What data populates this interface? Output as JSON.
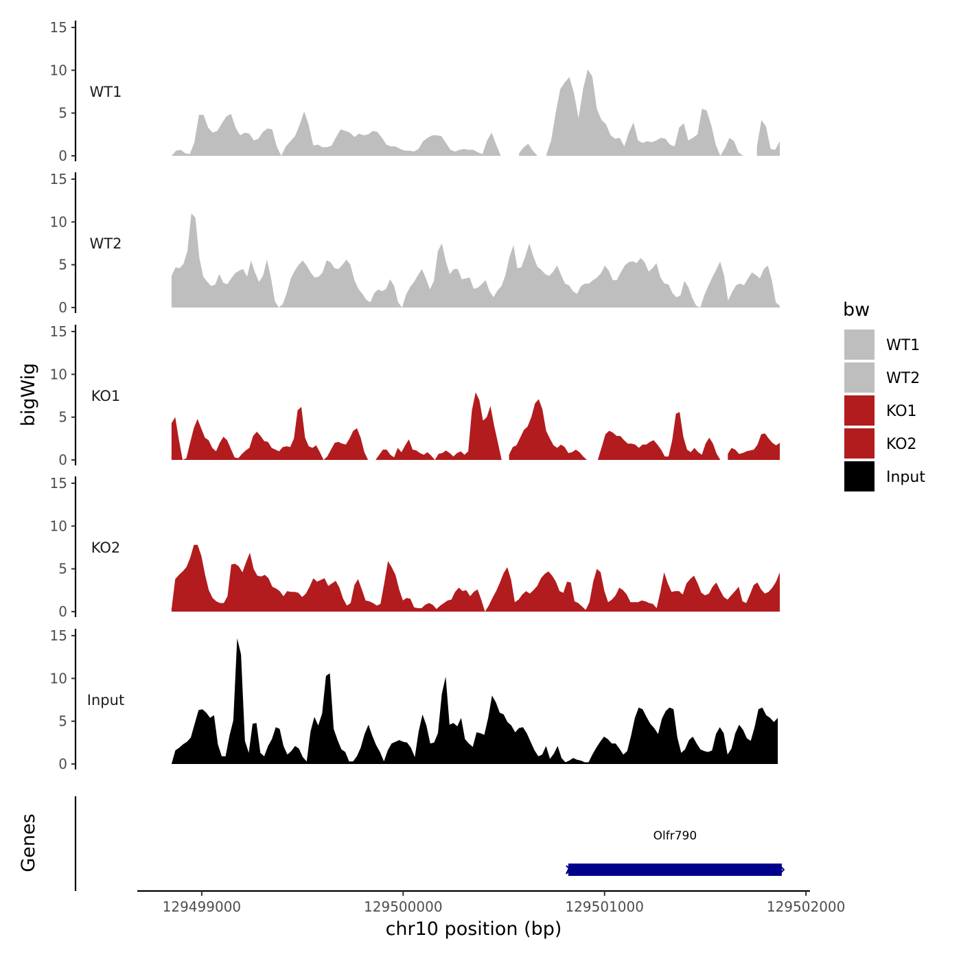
{
  "chart_data": {
    "type": "area",
    "chromosome": "chr10",
    "xlabel": "chr10 position (bp)",
    "ylabel": "bigWig",
    "genes_label": "Genes",
    "xlim": [
      129498680,
      129502020
    ],
    "x_ticks": [
      129499000,
      129500000,
      129501000,
      129502000
    ],
    "x_tick_labels": [
      "129499000",
      "129500000",
      "129501000",
      "129502000"
    ],
    "ylim": [
      0,
      15
    ],
    "y_ticks": [
      0,
      5,
      10,
      15
    ],
    "y_tick_labels": [
      "0",
      "5",
      "10",
      "15"
    ],
    "legend": {
      "title": "bw",
      "entries": [
        {
          "label": "WT1",
          "color": "#bebebe"
        },
        {
          "label": "WT2",
          "color": "#bebebe"
        },
        {
          "label": "KO1",
          "color": "#b21c1f"
        },
        {
          "label": "KO2",
          "color": "#b21c1f"
        },
        {
          "label": "Input",
          "color": "#000000"
        }
      ]
    },
    "tracks": [
      {
        "name": "WT1",
        "color": "#bebebe",
        "start": 129498850,
        "end": 129501870,
        "values": [
          0,
          0.6,
          0.7,
          0.3,
          0.2,
          1.6,
          4.8,
          4.8,
          3.3,
          2.7,
          2.9,
          3.8,
          4.6,
          4.9,
          3.3,
          2.4,
          2.7,
          2.6,
          1.8,
          2,
          2.8,
          3.2,
          3.1,
          1.1,
          0,
          1.1,
          1.7,
          2.3,
          3.6,
          5.2,
          3.6,
          1.2,
          1.3,
          1,
          1,
          1.2,
          2.2,
          3.1,
          2.9,
          2.7,
          2.2,
          2.6,
          2.4,
          2.5,
          2.9,
          2.8,
          2.1,
          1.3,
          1.1,
          1.1,
          0.8,
          0.6,
          0.6,
          0.5,
          0.8,
          1.7,
          2.1,
          2.4,
          2.4,
          2.3,
          1.5,
          0.7,
          0.5,
          0.7,
          0.8,
          0.7,
          0.7,
          0.4,
          0.2,
          1.8,
          2.7,
          1.3,
          0,
          null,
          null,
          null,
          0.3,
          1,
          1.4,
          0.6,
          0,
          null,
          0.2,
          1.8,
          5,
          7.8,
          8.6,
          9.2,
          7.3,
          4.4,
          7.8,
          10.1,
          9.3,
          5.5,
          4.2,
          3.7,
          2.4,
          2,
          2.1,
          1.1,
          2.7,
          3.9,
          1.8,
          1.5,
          1.7,
          1.6,
          1.8,
          2.1,
          2,
          1.3,
          1.1,
          3.3,
          3.8,
          1.8,
          2.1,
          2.5,
          5.5,
          5.3,
          3.6,
          1.3,
          0,
          0.9,
          2.1,
          1.7,
          0.4,
          0,
          null,
          null,
          1.1,
          4.2,
          3.4,
          0.8,
          0.7,
          1.7
        ]
      },
      {
        "name": "WT2",
        "color": "#bebebe",
        "start": 129498850,
        "end": 129501870,
        "values": [
          3.7,
          4.7,
          4.6,
          5.1,
          6.6,
          11,
          10.5,
          5.8,
          3.6,
          3,
          2.5,
          2.7,
          3.9,
          2.9,
          2.7,
          3.4,
          4,
          4.3,
          4.5,
          3.6,
          5.5,
          4.1,
          3,
          3.7,
          5.6,
          3.5,
          0.7,
          0,
          0.4,
          1.7,
          3.4,
          4.3,
          5,
          5.5,
          4.9,
          4.1,
          3.5,
          3.6,
          4.1,
          5.5,
          5.3,
          4.6,
          4.5,
          5,
          5.6,
          5,
          3.2,
          2.2,
          1.6,
          0.9,
          0.6,
          1.7,
          2.1,
          1.9,
          2.2,
          3.3,
          2.5,
          0.6,
          0,
          1.5,
          2.4,
          3,
          3.8,
          4.5,
          3.4,
          2.1,
          3.1,
          6.6,
          7.5,
          5.4,
          3.9,
          4.5,
          4.5,
          3.3,
          3.4,
          3.5,
          2.2,
          2.3,
          2.7,
          3.2,
          1.9,
          1.2,
          2,
          2.5,
          3.8,
          5.9,
          7.3,
          4.6,
          4.7,
          6,
          7.5,
          6,
          4.8,
          4.4,
          3.9,
          3.7,
          4.2,
          4.9,
          3.8,
          2.8,
          2.6,
          1.9,
          1.6,
          2.5,
          2.8,
          2.8,
          3.2,
          3.5,
          4,
          4.9,
          4.3,
          3.2,
          3.2,
          4.1,
          4.9,
          5.3,
          5.4,
          5.2,
          5.8,
          5.3,
          4.2,
          4.6,
          5.2,
          3.5,
          2.8,
          2.7,
          1.7,
          1.2,
          1.4,
          3.1,
          2.4,
          1.1,
          0.2,
          0,
          1.4,
          2.5,
          3.5,
          4.4,
          5.4,
          3.7,
          0.8,
          1.8,
          2.6,
          2.8,
          2.6,
          3.4,
          4.1,
          3.8,
          3.4,
          4.5,
          4.9,
          3.2,
          0.6,
          0.2
        ]
      },
      {
        "name": "KO1",
        "color": "#b21c1f",
        "start": 129498850,
        "end": 129501870,
        "values": [
          4.3,
          5,
          2.3,
          0,
          0.2,
          2,
          3.7,
          4.8,
          3.7,
          2.6,
          2.3,
          1.4,
          1,
          2,
          2.7,
          2.3,
          1.3,
          0.3,
          0.2,
          0.7,
          1.1,
          1.4,
          2.8,
          3.3,
          2.8,
          2.2,
          2.1,
          1.4,
          1.2,
          1,
          1.5,
          1.6,
          1.5,
          2.5,
          5.8,
          6.2,
          2.6,
          1.6,
          1.4,
          1.7,
          0.9,
          0,
          0.4,
          1.2,
          2,
          2.1,
          1.9,
          1.8,
          2.5,
          3.4,
          3.7,
          2.6,
          0.9,
          0,
          null,
          0,
          0.6,
          1.2,
          1.2,
          0.6,
          0.3,
          1.4,
          0.9,
          1.7,
          2.4,
          1.2,
          1.1,
          0.8,
          0.6,
          0.9,
          0.5,
          0,
          0.7,
          0.8,
          1.1,
          0.8,
          0.4,
          0.8,
          1,
          0.6,
          1,
          5.8,
          7.9,
          7,
          4.6,
          5,
          6.3,
          4,
          2,
          0,
          null,
          0.6,
          1.5,
          1.7,
          2.6,
          3.5,
          3.9,
          5,
          6.6,
          7.1,
          5.9,
          3.4,
          2.5,
          1.7,
          1.4,
          1.8,
          1.5,
          0.8,
          0.9,
          1.2,
          0.9,
          0.4,
          0,
          null,
          null,
          0.1,
          1.5,
          3,
          3.4,
          3.2,
          2.8,
          2.8,
          2.3,
          1.9,
          1.9,
          1.8,
          1.4,
          1.8,
          1.8,
          2.1,
          2.3,
          1.8,
          1.2,
          0.4,
          0.4,
          2.3,
          5.4,
          5.6,
          2.7,
          1.2,
          0.9,
          1.4,
          0.9,
          0.6,
          1.9,
          2.6,
          1.9,
          0.7,
          0,
          null,
          0.7,
          1.4,
          1.2,
          0.7,
          0.8,
          1,
          1.1,
          1.2,
          1.8,
          3,
          3.1,
          2.5,
          2,
          1.7,
          2
        ]
      },
      {
        "name": "KO2",
        "color": "#b21c1f",
        "start": 129498850,
        "end": 129501870,
        "values": [
          0.3,
          3.8,
          4.3,
          4.7,
          5.2,
          6.3,
          7.8,
          7.8,
          6.5,
          4.3,
          2.5,
          1.6,
          1.2,
          1,
          1,
          1.8,
          5.5,
          5.6,
          5.3,
          4.6,
          5.8,
          6.9,
          5,
          4.2,
          4.1,
          4.3,
          3.9,
          2.9,
          2.7,
          2.4,
          1.8,
          2.4,
          2.3,
          2.3,
          2.2,
          1.7,
          2.1,
          2.9,
          3.9,
          3.5,
          3.7,
          3.9,
          3,
          3.3,
          3.6,
          2.8,
          1.5,
          0.7,
          1,
          3.1,
          3.8,
          2.6,
          1.3,
          1.2,
          1,
          0.7,
          0.9,
          3.3,
          5.9,
          5.2,
          4.3,
          2.6,
          1.3,
          1.6,
          1.5,
          0.5,
          0.4,
          0.4,
          0.8,
          1,
          0.8,
          0.3,
          0.7,
          1,
          1.3,
          1.4,
          2.3,
          2.8,
          2.4,
          2.5,
          1.8,
          2.3,
          2.6,
          1.4,
          0,
          0.7,
          1.6,
          2.4,
          3.4,
          4.5,
          5.2,
          3.7,
          1.1,
          1.4,
          2,
          2.4,
          2.1,
          2.5,
          3,
          3.9,
          4.4,
          4.7,
          4.2,
          3.5,
          2.4,
          2.2,
          3.5,
          3.4,
          1.2,
          1,
          0.6,
          0.2,
          1.1,
          3.5,
          5,
          4.6,
          2.4,
          1.1,
          1.4,
          1.9,
          2.8,
          2.5,
          2,
          1.1,
          1.1,
          1.1,
          1.3,
          1.2,
          1,
          0.9,
          0.4,
          2.3,
          4.6,
          3.3,
          2.3,
          2.4,
          2.4,
          2,
          3.3,
          3.8,
          4.2,
          3.3,
          2.2,
          1.9,
          2.1,
          2.9,
          3.4,
          2.5,
          1.7,
          1.4,
          1.9,
          2.4,
          2.9,
          1.2,
          1,
          2,
          3.1,
          3.4,
          2.6,
          2.1,
          2.3,
          2.8,
          3.5,
          4.6
        ]
      },
      {
        "name": "Input",
        "color": "#000000",
        "start": 129498850,
        "end": 129501860,
        "values": [
          0,
          1.6,
          1.9,
          2.3,
          2.6,
          3.1,
          4.7,
          6.3,
          6.4,
          6,
          5.4,
          5.7,
          2.3,
          0.9,
          0.9,
          3.3,
          5.1,
          14.7,
          12.8,
          2.7,
          1.3,
          4.7,
          4.8,
          1.3,
          0.9,
          2.1,
          2.9,
          4.3,
          4.1,
          2.1,
          1.1,
          1.5,
          2.1,
          1.8,
          0.8,
          0.3,
          3.8,
          5.5,
          4.5,
          5.9,
          10.3,
          10.6,
          4.1,
          2.8,
          1.7,
          1.4,
          0.3,
          0.3,
          0.9,
          1.9,
          3.5,
          4.6,
          3.3,
          2.2,
          1.4,
          0.3,
          1.6,
          2.4,
          2.6,
          2.8,
          2.6,
          2.5,
          1.9,
          0.8,
          3.8,
          5.8,
          4.5,
          2.4,
          2.5,
          3.6,
          8.2,
          10.2,
          4.6,
          4.8,
          4.4,
          5.4,
          2.9,
          2.4,
          2,
          3.7,
          3.6,
          3.4,
          5.4,
          8,
          7.2,
          6,
          5.8,
          4.9,
          4.5,
          3.7,
          4.2,
          4.3,
          3.6,
          2.6,
          1.6,
          0.9,
          1.1,
          2.1,
          0.6,
          1.2,
          2.1,
          0.7,
          0.2,
          0.4,
          0.7,
          0.5,
          0.4,
          0.2,
          0.2,
          1.1,
          1.9,
          2.6,
          3.2,
          2.9,
          2.4,
          2.4,
          1.8,
          1.1,
          1.5,
          3.3,
          5.4,
          6.6,
          6.4,
          5.5,
          4.7,
          4.2,
          3.5,
          5.3,
          6.2,
          6.6,
          6.4,
          3.1,
          1.3,
          1.7,
          2.8,
          3.2,
          2.4,
          1.7,
          1.5,
          1.4,
          1.6,
          3.5,
          4.3,
          3.6,
          1.1,
          1.8,
          3.6,
          4.6,
          4,
          3,
          2.7,
          4.3,
          6.4,
          6.6,
          5.7,
          5.4,
          4.9,
          5.4
        ]
      }
    ],
    "genes": [
      {
        "name": "Olfr790",
        "start": 129500820,
        "end": 129501880,
        "strand": "-",
        "color": "#00008b"
      }
    ]
  }
}
